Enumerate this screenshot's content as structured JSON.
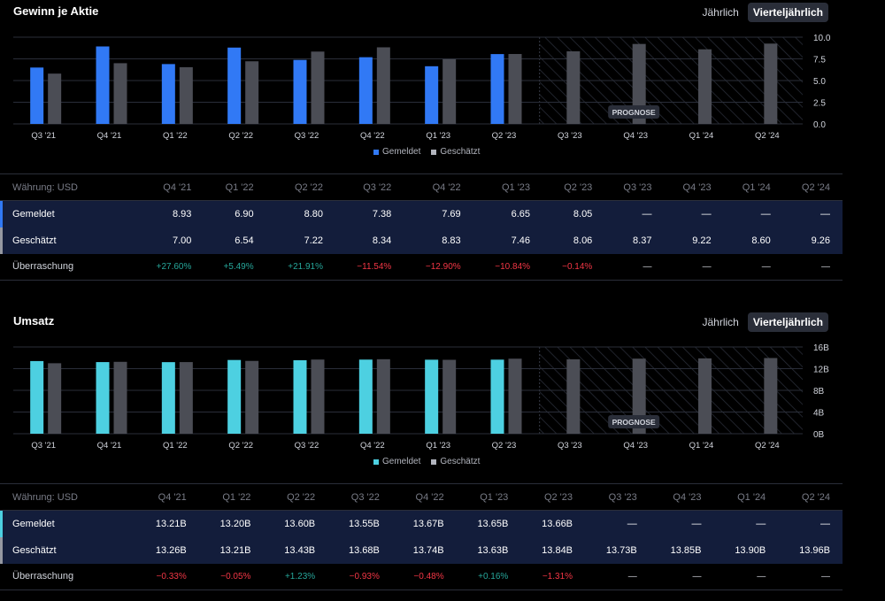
{
  "eps": {
    "title": "Gewinn je Aktie",
    "toggle": {
      "annual": "Jährlich",
      "quarterly": "Vierteljährlich"
    },
    "chart_data": {
      "type": "bar",
      "categories": [
        "Q3 '21",
        "Q4 '21",
        "Q1 '22",
        "Q2 '22",
        "Q3 '22",
        "Q4 '22",
        "Q1 '23",
        "Q2 '23",
        "Q3 '23",
        "Q4 '23",
        "Q1 '24",
        "Q2 '24"
      ],
      "series": [
        {
          "name": "Gemeldet",
          "color": "#3179f5",
          "values": [
            6.5,
            8.93,
            6.9,
            8.8,
            7.38,
            7.69,
            6.65,
            8.05,
            null,
            null,
            null,
            null
          ]
        },
        {
          "name": "Geschätzt",
          "color": "#4b4d55",
          "values": [
            5.8,
            7.0,
            6.54,
            7.22,
            8.34,
            8.83,
            7.46,
            8.06,
            8.37,
            9.22,
            8.6,
            9.26
          ]
        }
      ],
      "ylim": [
        0,
        10
      ],
      "yticks": [
        "10.0",
        "7.5",
        "5.0",
        "2.5",
        "0.0"
      ],
      "forecast_start_index": 8,
      "forecast_label": "PROGNOSE",
      "grid": true,
      "legend": "bottom-center"
    },
    "table": {
      "currency_label": "Währung: USD",
      "columns": [
        "Q4 '21",
        "Q1 '22",
        "Q2 '22",
        "Q3 '22",
        "Q4 '22",
        "Q1 '23",
        "Q2 '23",
        "Q3 '23",
        "Q4 '23",
        "Q1 '24",
        "Q2 '24"
      ],
      "rows": [
        {
          "label": "Gemeldet",
          "cells": [
            "8.93",
            "6.90",
            "8.80",
            "7.38",
            "7.69",
            "6.65",
            "8.05",
            "—",
            "—",
            "—",
            "—"
          ]
        },
        {
          "label": "Geschätzt",
          "cells": [
            "7.00",
            "6.54",
            "7.22",
            "8.34",
            "8.83",
            "7.46",
            "8.06",
            "8.37",
            "9.22",
            "8.60",
            "9.26"
          ]
        },
        {
          "label": "Überraschung",
          "cells": [
            "+27.60%",
            "+5.49%",
            "+21.91%",
            "−11.54%",
            "−12.90%",
            "−10.84%",
            "−0.14%",
            "—",
            "—",
            "—",
            "—"
          ]
        }
      ]
    }
  },
  "revenue": {
    "title": "Umsatz",
    "toggle": {
      "annual": "Jährlich",
      "quarterly": "Vierteljährlich"
    },
    "chart_data": {
      "type": "bar",
      "categories": [
        "Q3 '21",
        "Q4 '21",
        "Q1 '22",
        "Q2 '22",
        "Q3 '22",
        "Q4 '22",
        "Q1 '23",
        "Q2 '23",
        "Q3 '23",
        "Q4 '23",
        "Q1 '24",
        "Q2 '24"
      ],
      "series": [
        {
          "name": "Gemeldet",
          "color": "#4dd0e1",
          "values": [
            13.4,
            13.21,
            13.2,
            13.6,
            13.55,
            13.67,
            13.65,
            13.66,
            null,
            null,
            null,
            null
          ]
        },
        {
          "name": "Geschätzt",
          "color": "#4b4d55",
          "values": [
            13.0,
            13.26,
            13.21,
            13.43,
            13.68,
            13.74,
            13.63,
            13.84,
            13.73,
            13.85,
            13.9,
            13.96
          ]
        }
      ],
      "ylim": [
        0,
        16
      ],
      "yticks": [
        "16B",
        "12B",
        "8B",
        "4B",
        "0B"
      ],
      "forecast_start_index": 8,
      "forecast_label": "PROGNOSE",
      "grid": true,
      "legend": "bottom-center"
    },
    "table": {
      "currency_label": "Währung: USD",
      "columns": [
        "Q4 '21",
        "Q1 '22",
        "Q2 '22",
        "Q3 '22",
        "Q4 '22",
        "Q1 '23",
        "Q2 '23",
        "Q3 '23",
        "Q4 '23",
        "Q1 '24",
        "Q2 '24"
      ],
      "rows": [
        {
          "label": "Gemeldet",
          "cells": [
            "13.21B",
            "13.20B",
            "13.60B",
            "13.55B",
            "13.67B",
            "13.65B",
            "13.66B",
            "—",
            "—",
            "—",
            "—"
          ]
        },
        {
          "label": "Geschätzt",
          "cells": [
            "13.26B",
            "13.21B",
            "13.43B",
            "13.68B",
            "13.74B",
            "13.63B",
            "13.84B",
            "13.73B",
            "13.85B",
            "13.90B",
            "13.96B"
          ]
        },
        {
          "label": "Überraschung",
          "cells": [
            "−0.33%",
            "−0.05%",
            "+1.23%",
            "−0.93%",
            "−0.48%",
            "+0.16%",
            "−1.31%",
            "—",
            "—",
            "—",
            "—"
          ]
        }
      ]
    }
  }
}
